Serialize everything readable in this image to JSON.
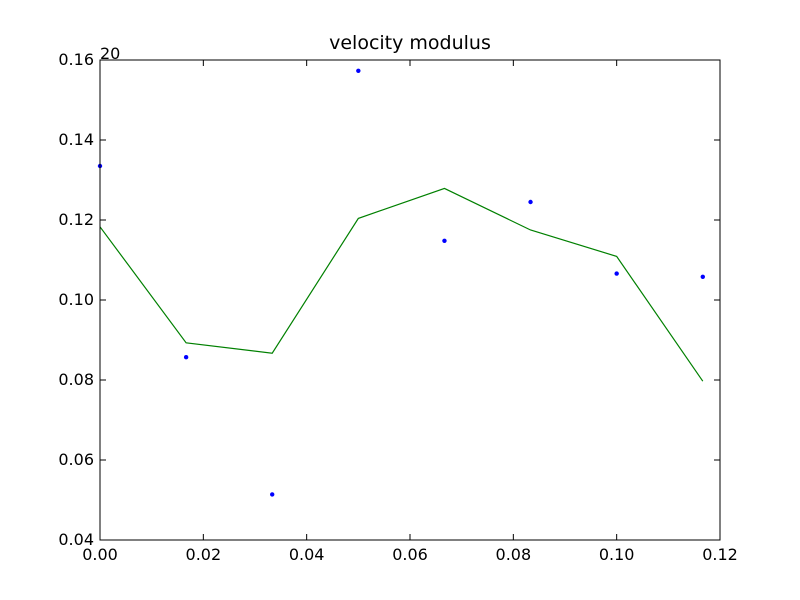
{
  "chart_data": {
    "type": "line",
    "title": "velocity modulus",
    "corner_label": "20",
    "xlabel": "",
    "ylabel": "",
    "xlim": [
      0.0,
      0.12
    ],
    "ylim": [
      0.04,
      0.16
    ],
    "grid": false,
    "x_ticks": [
      0.0,
      0.02,
      0.04,
      0.06,
      0.08,
      0.1,
      0.12
    ],
    "x_tick_labels": [
      "0.00",
      "0.02",
      "0.04",
      "0.06",
      "0.08",
      "0.10",
      "0.12"
    ],
    "y_ticks": [
      0.04,
      0.06,
      0.08,
      0.1,
      0.12,
      0.14,
      0.16
    ],
    "y_tick_labels": [
      "0.04",
      "0.06",
      "0.08",
      "0.10",
      "0.12",
      "0.14",
      "0.16"
    ],
    "series": [
      {
        "style": "markers",
        "color": "#0000ff",
        "x": [
          0.0,
          0.01667,
          0.03333,
          0.05,
          0.06667,
          0.08333,
          0.1,
          0.11667
        ],
        "y": [
          0.1335,
          0.0857,
          0.0514,
          0.1573,
          0.1148,
          0.1245,
          0.1066,
          0.1058
        ]
      },
      {
        "style": "line",
        "color": "#008000",
        "x": [
          0.0,
          0.01667,
          0.03333,
          0.05,
          0.06667,
          0.08333,
          0.1,
          0.11667
        ],
        "y": [
          0.1183,
          0.0893,
          0.0867,
          0.1204,
          0.1279,
          0.1175,
          0.1109,
          0.0797
        ]
      }
    ]
  }
}
